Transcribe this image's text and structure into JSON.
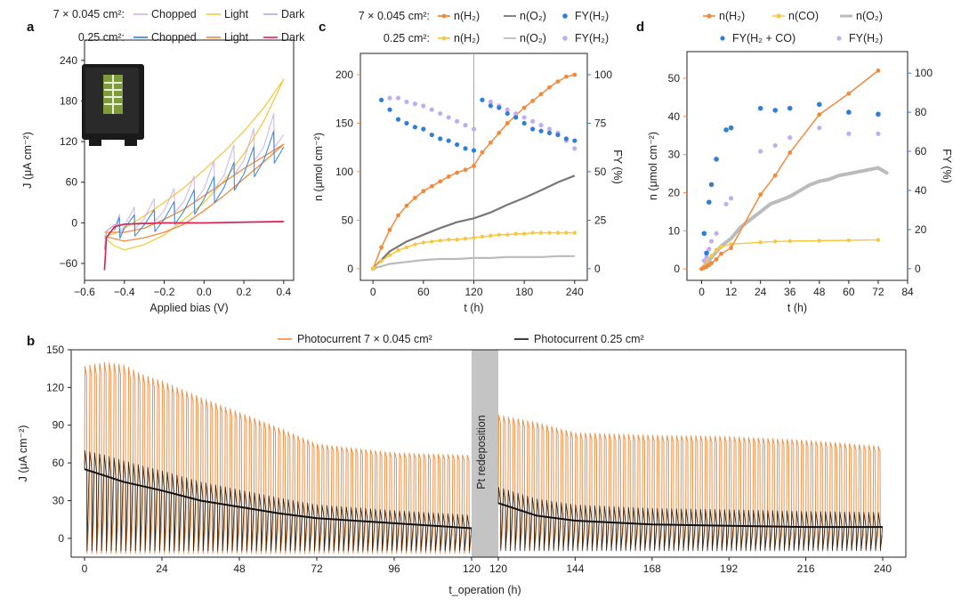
{
  "figure": {
    "panels": {
      "a": "a",
      "b": "b",
      "c": "c",
      "d": "d"
    }
  },
  "chart_data": [
    {
      "id": "a",
      "type": "line",
      "title": "",
      "xlabel": "Applied bias (V)",
      "ylabel": "J (μA cm⁻²)",
      "xlim": [
        -0.6,
        0.45
      ],
      "ylim": [
        -85,
        270
      ],
      "xticks": [
        -0.6,
        -0.4,
        -0.2,
        0.0,
        0.2,
        0.4
      ],
      "xtick_labels": [
        "−0.6",
        "−0.4",
        "−0.2",
        "0.0",
        "0.2",
        "0.4"
      ],
      "yticks": [
        -60,
        0,
        60,
        120,
        180,
        240
      ],
      "ytick_labels": [
        "−60",
        "0",
        "60",
        "120",
        "180",
        "240"
      ],
      "legend": {
        "row1_label": "7 × 0.045 cm²:",
        "row2_label": "0.25 cm²:",
        "entries": [
          "Chopped",
          "Light",
          "Dark",
          "Chopped",
          "Light",
          "Dark"
        ]
      },
      "series": [
        {
          "name": "7 × 0.045 cm² Light",
          "color": "#f5c842",
          "forward": [
            [
              -0.5,
              -20
            ],
            [
              -0.45,
              -16
            ],
            [
              -0.4,
              -8
            ],
            [
              -0.3,
              10
            ],
            [
              -0.2,
              30
            ],
            [
              -0.1,
              52
            ],
            [
              0.0,
              78
            ],
            [
              0.1,
              105
            ],
            [
              0.2,
              135
            ],
            [
              0.3,
              170
            ],
            [
              0.4,
              212
            ]
          ],
          "reverse": [
            [
              0.4,
              212
            ],
            [
              0.3,
              150
            ],
            [
              0.2,
              102
            ],
            [
              0.1,
              62
            ],
            [
              0.0,
              30
            ],
            [
              -0.1,
              5
            ],
            [
              -0.2,
              -18
            ],
            [
              -0.3,
              -32
            ],
            [
              -0.4,
              -40
            ],
            [
              -0.45,
              -34
            ],
            [
              -0.5,
              -22
            ]
          ]
        },
        {
          "name": "0.25 cm² Light",
          "color": "#f08a3c",
          "forward": [
            [
              -0.5,
              -14
            ],
            [
              -0.4,
              -14
            ],
            [
              -0.3,
              -8
            ],
            [
              -0.2,
              5
            ],
            [
              -0.1,
              20
            ],
            [
              0.0,
              40
            ],
            [
              0.1,
              60
            ],
            [
              0.2,
              80
            ],
            [
              0.3,
              98
            ],
            [
              0.4,
              116
            ]
          ],
          "reverse": [
            [
              0.4,
              116
            ],
            [
              0.3,
              90
            ],
            [
              0.2,
              65
            ],
            [
              0.1,
              40
            ],
            [
              0.0,
              18
            ],
            [
              -0.1,
              -2
            ],
            [
              -0.2,
              -14
            ],
            [
              -0.3,
              -22
            ],
            [
              -0.4,
              -27
            ],
            [
              -0.5,
              -20
            ]
          ]
        },
        {
          "name": "7 × 0.045 cm² Chopped",
          "color": "#c9b3e8",
          "points": [
            [
              -0.45,
              -12
            ],
            [
              -0.4,
              -4
            ],
            [
              -0.3,
              6
            ],
            [
              -0.2,
              18
            ],
            [
              -0.1,
              32
            ],
            [
              0.0,
              50
            ],
            [
              0.1,
              70
            ],
            [
              0.2,
              92
            ],
            [
              0.3,
              112
            ],
            [
              0.4,
              130
            ]
          ]
        },
        {
          "name": "0.25 cm² Chopped",
          "color": "#2f7fd6",
          "points": [
            [
              -0.45,
              -10
            ],
            [
              -0.4,
              -8
            ],
            [
              -0.3,
              -3
            ],
            [
              -0.2,
              5
            ],
            [
              -0.1,
              18
            ],
            [
              0.0,
              35
            ],
            [
              0.1,
              52
            ],
            [
              0.2,
              72
            ],
            [
              0.3,
              92
            ],
            [
              0.4,
              112
            ]
          ]
        },
        {
          "name": "0.25 cm² Dark",
          "color": "#e0204a",
          "points": [
            [
              -0.5,
              -70
            ],
            [
              -0.49,
              -22
            ],
            [
              -0.45,
              -6
            ],
            [
              -0.4,
              -2
            ],
            [
              -0.2,
              0
            ],
            [
              0.0,
              0
            ],
            [
              0.2,
              1
            ],
            [
              0.4,
              2
            ]
          ]
        },
        {
          "name": "7 × 0.045 cm² Dark",
          "color": "#b9a8d8",
          "points": [
            [
              -0.5,
              -40
            ],
            [
              -0.49,
              -12
            ],
            [
              -0.45,
              -3
            ],
            [
              -0.3,
              0
            ],
            [
              0.0,
              0
            ],
            [
              0.4,
              1
            ]
          ]
        }
      ]
    },
    {
      "id": "c",
      "type": "scatter",
      "title": "",
      "xlabel": "t (h)",
      "ylabel_left": "n (μmol cm⁻²)",
      "ylabel_right": "FY (%)",
      "xlim": [
        -15,
        255
      ],
      "ylim_left": [
        -12,
        222
      ],
      "ylim_right": [
        -6,
        111
      ],
      "xticks": [
        0,
        60,
        120,
        180,
        240
      ],
      "yticks_left": [
        0,
        50,
        100,
        150,
        200
      ],
      "yticks_right": [
        0,
        25,
        50,
        75,
        100
      ],
      "vline_at": 120,
      "legend": {
        "row1_label": "7 × 0.045 cm²:",
        "row2_label": "0.25 cm²:",
        "entries": [
          "n(H₂)",
          "n(O₂)",
          "FY(H₂)",
          "n(H₂)",
          "n(O₂)",
          "FY(H₂)"
        ]
      },
      "series": [
        {
          "name": "7 × 0.045 cm² n(H2)",
          "color": "#f08a3c",
          "axis": "left",
          "x": [
            0,
            10,
            20,
            30,
            40,
            50,
            60,
            70,
            80,
            90,
            100,
            110,
            120,
            130,
            140,
            150,
            160,
            170,
            180,
            190,
            200,
            210,
            220,
            230,
            240
          ],
          "y": [
            0,
            22,
            40,
            55,
            65,
            73,
            80,
            85,
            90,
            95,
            99,
            102,
            106,
            120,
            130,
            140,
            150,
            158,
            166,
            173,
            180,
            187,
            193,
            198,
            200
          ]
        },
        {
          "name": "7 × 0.045 cm² n(O2)",
          "color": "#777777",
          "axis": "left",
          "x": [
            0,
            20,
            40,
            60,
            80,
            100,
            120,
            140,
            160,
            180,
            200,
            220,
            240
          ],
          "y": [
            0,
            18,
            28,
            35,
            42,
            48,
            52,
            58,
            66,
            73,
            81,
            89,
            96
          ]
        },
        {
          "name": "0.25 cm² n(H2)",
          "color": "#f5c842",
          "axis": "left",
          "x": [
            0,
            10,
            20,
            30,
            40,
            50,
            60,
            70,
            80,
            90,
            100,
            110,
            120,
            130,
            140,
            150,
            160,
            170,
            180,
            190,
            200,
            210,
            220,
            230,
            240
          ],
          "y": [
            0,
            8,
            14,
            19,
            22,
            25,
            27,
            28,
            29,
            30,
            30,
            31,
            32,
            33,
            34,
            35,
            35,
            36,
            36,
            37,
            37,
            37,
            37,
            37,
            37
          ]
        },
        {
          "name": "0.25 cm² n(O2)",
          "color": "#bbbbbb",
          "axis": "left",
          "x": [
            0,
            20,
            40,
            60,
            80,
            100,
            120,
            140,
            160,
            180,
            200,
            220,
            240
          ],
          "y": [
            0,
            5,
            7,
            9,
            10,
            10,
            11,
            11,
            12,
            12,
            12,
            13,
            13
          ]
        },
        {
          "name": "7 × 0.045 cm² FY(H2)",
          "color": "#2f7fd6",
          "axis": "right",
          "x": [
            10,
            20,
            30,
            40,
            50,
            60,
            70,
            80,
            90,
            100,
            110,
            120,
            130,
            140,
            150,
            160,
            170,
            180,
            190,
            200,
            210,
            220,
            230,
            240
          ],
          "y": [
            87,
            82,
            77,
            75,
            73,
            72,
            69,
            67,
            66,
            64,
            62,
            61,
            87,
            84,
            83,
            80,
            78,
            75,
            72,
            71,
            70,
            69,
            67,
            66
          ]
        },
        {
          "name": "0.25 cm² FY(H2)",
          "color": "#c0aef0",
          "axis": "right",
          "x": [
            10,
            20,
            30,
            40,
            50,
            60,
            70,
            80,
            90,
            100,
            110,
            120,
            130,
            140,
            150,
            160,
            170,
            180,
            190,
            200,
            210,
            220,
            230,
            240
          ],
          "y": [
            87,
            88,
            88,
            86,
            85,
            84,
            82,
            80,
            78,
            76,
            74,
            72,
            87,
            86,
            84,
            82,
            80,
            78,
            76,
            74,
            72,
            70,
            66,
            62
          ]
        }
      ]
    },
    {
      "id": "d",
      "type": "scatter",
      "title": "",
      "xlabel": "t (h)",
      "ylabel_left": "n (μmol cm⁻²)",
      "ylabel_right": "FY (%)",
      "xlim": [
        -6,
        84
      ],
      "ylim_left": [
        -3,
        57
      ],
      "ylim_right": [
        -6,
        111
      ],
      "xticks": [
        0,
        12,
        24,
        36,
        48,
        60,
        72,
        84
      ],
      "yticks_left": [
        0,
        10,
        20,
        30,
        40,
        50
      ],
      "yticks_right": [
        0,
        20,
        40,
        60,
        80,
        100
      ],
      "legend": {
        "entries": [
          "n(H₂)",
          "n(CO)",
          "n(O₂)",
          "FY(H₂ + CO)",
          "FY(H₂)"
        ]
      },
      "series": [
        {
          "name": "n(H2)",
          "color": "#f08a3c",
          "axis": "left",
          "x": [
            0,
            1,
            2,
            3,
            4,
            6,
            8,
            12,
            24,
            30,
            36,
            48,
            60,
            72
          ],
          "y": [
            0,
            0.3,
            0.6,
            1,
            1.5,
            2.5,
            4,
            5.5,
            19.5,
            24.5,
            30.5,
            40.5,
            46,
            52
          ]
        },
        {
          "name": "n(CO)",
          "color": "#f5c842",
          "axis": "left",
          "x": [
            0,
            2,
            4,
            6,
            8,
            12,
            24,
            30,
            36,
            48,
            60,
            72
          ],
          "y": [
            0,
            2,
            3.5,
            5,
            5.8,
            6.5,
            7,
            7.2,
            7.3,
            7.4,
            7.5,
            7.6
          ]
        },
        {
          "name": "n(O2)",
          "color": "#bbbbbb",
          "axis": "left",
          "x": [
            0,
            4,
            8,
            12,
            16,
            20,
            24,
            28,
            32,
            36,
            40,
            44,
            48,
            52,
            56,
            60,
            64,
            68,
            72,
            76
          ],
          "y": [
            0,
            3,
            6,
            8,
            11,
            13,
            15,
            17,
            18,
            19,
            20.5,
            22,
            23,
            23.5,
            24.5,
            25,
            25.5,
            26,
            26.5,
            25
          ]
        },
        {
          "name": "FY(H2 + CO)",
          "color": "#2f7fd6",
          "axis": "right",
          "x": [
            1,
            2,
            3,
            4,
            6,
            10,
            12,
            24,
            30,
            36,
            48,
            60,
            72
          ],
          "y": [
            18,
            8,
            34,
            43,
            56,
            71,
            72,
            82,
            81,
            82,
            84,
            80,
            79
          ]
        },
        {
          "name": "FY(H2)",
          "color": "#c0aef0",
          "axis": "right",
          "x": [
            1,
            2,
            3,
            4,
            6,
            10,
            12,
            24,
            30,
            36,
            48,
            60,
            72
          ],
          "y": [
            4,
            6,
            10,
            14,
            18,
            33,
            36,
            60,
            63,
            67,
            72,
            69,
            69
          ]
        }
      ]
    },
    {
      "id": "b",
      "type": "line",
      "title": "",
      "xlabel": "t_operation (h)",
      "ylabel": "J (μA cm⁻²)",
      "ylim": [
        -15,
        150
      ],
      "yticks": [
        0,
        30,
        60,
        90,
        120,
        150
      ],
      "xtick_labels": [
        "0",
        "24",
        "48",
        "72",
        "96",
        "120",
        "120",
        "144",
        "168",
        "192",
        "216",
        "240"
      ],
      "break_label": "Pt redeposition",
      "legend": [
        "Photocurrent 7 × 0.045 cm²",
        "Photocurrent 0.25 cm²"
      ],
      "series": [
        {
          "name": "Photocurrent 7 × 0.045 cm² (envelope, before Pt)",
          "color": "#f08a3c",
          "x": [
            0,
            6,
            12,
            18,
            24,
            36,
            48,
            60,
            72,
            96,
            120
          ],
          "y": [
            137,
            140,
            138,
            130,
            125,
            112,
            100,
            88,
            75,
            68,
            66
          ]
        },
        {
          "name": "Photocurrent 7 × 0.045 cm² (envelope, after Pt)",
          "color": "#f08a3c",
          "x": [
            120,
            132,
            144,
            168,
            192,
            216,
            240
          ],
          "y": [
            98,
            92,
            84,
            82,
            81,
            78,
            73
          ]
        },
        {
          "name": "Photocurrent 0.25 cm² (baseline, before Pt)",
          "color": "#111111",
          "x": [
            0,
            6,
            12,
            24,
            36,
            48,
            60,
            72,
            96,
            120
          ],
          "y": [
            55,
            50,
            45,
            38,
            30,
            25,
            20,
            16,
            12,
            8
          ]
        },
        {
          "name": "Photocurrent 0.25 cm² (baseline, after Pt)",
          "color": "#111111",
          "x": [
            120,
            132,
            144,
            168,
            192,
            216,
            240
          ],
          "y": [
            28,
            18,
            14,
            11,
            10,
            9,
            9
          ]
        }
      ]
    }
  ]
}
